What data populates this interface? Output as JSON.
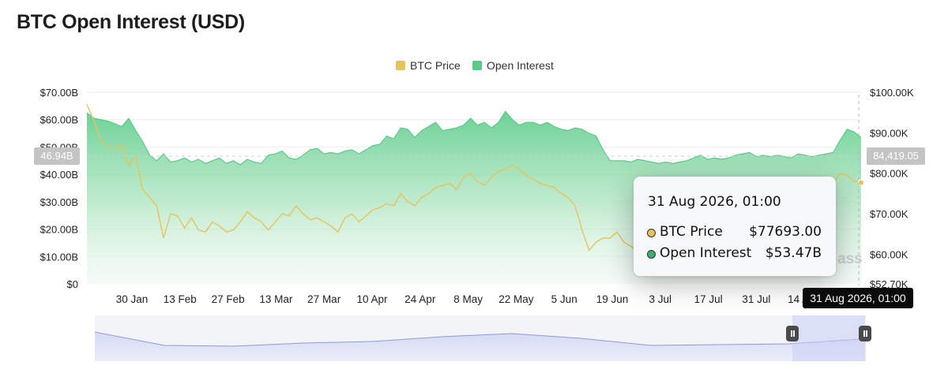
{
  "title": "BTC Open Interest (USD)",
  "legend": {
    "items": [
      {
        "label": "BTC Price",
        "color": "#e8c25a"
      },
      {
        "label": "Open Interest",
        "color": "#5cc98a"
      }
    ]
  },
  "tooltip": {
    "date": "31 Aug 2026, 01:00",
    "rows": [
      {
        "label": "BTC Price",
        "value": "$77693.00",
        "color": "#e8c25a"
      },
      {
        "label": "Open Interest",
        "value": "$53.47B",
        "color": "#3fae74"
      }
    ]
  },
  "crosshair": {
    "left_value": "46.94B",
    "right_value": "84,419.05",
    "date": "31 Aug 2026, 01:00"
  },
  "watermark": "ass",
  "chart_data": {
    "type": "area",
    "title": "BTC Open Interest (USD)",
    "categories": [
      "30 Jan",
      "13 Feb",
      "27 Feb",
      "13 Mar",
      "27 Mar",
      "10 Apr",
      "24 Apr",
      "8 May",
      "22 May",
      "5 Jun",
      "19 Jun",
      "3 Jul",
      "17 Jul",
      "31 Jul",
      "14 Aug",
      "31 Aug"
    ],
    "left_axis": {
      "ticks": [
        "$0",
        "$10.00B",
        "$20.00B",
        "$30.00B",
        "$40.00B",
        "$50.00B",
        "$60.00B",
        "$70.00B"
      ],
      "range": [
        0,
        70
      ]
    },
    "right_axis": {
      "ticks": [
        "$52.70K",
        "$60.00K",
        "$70.00K",
        "$80.00K",
        "$90.00K",
        "$100.00K"
      ],
      "range": [
        52.7,
        100
      ]
    },
    "x_range": [
      0,
      222
    ],
    "series": [
      {
        "name": "Open Interest",
        "unit": "USD billions",
        "axis": "left",
        "color": "#5cc98a",
        "x": [
          0,
          2,
          4,
          6,
          8,
          10,
          12,
          14,
          16,
          18,
          20,
          22,
          24,
          26,
          28,
          30,
          32,
          34,
          36,
          38,
          40,
          42,
          44,
          46,
          48,
          50,
          52,
          54,
          56,
          58,
          60,
          62,
          64,
          66,
          68,
          70,
          72,
          74,
          76,
          78,
          80,
          82,
          84,
          86,
          88,
          90,
          92,
          94,
          96,
          98,
          100,
          102,
          104,
          106,
          108,
          110,
          112,
          114,
          116,
          118,
          120,
          122,
          124,
          126,
          128,
          130,
          132,
          134,
          136,
          138,
          140,
          142,
          144,
          146,
          148,
          150,
          152,
          154,
          156,
          158,
          160,
          162,
          164,
          166,
          168,
          170,
          172,
          174,
          176,
          178,
          180,
          182,
          184,
          186,
          188,
          190,
          192,
          194,
          196,
          198,
          200,
          202,
          204,
          206,
          208,
          210,
          212,
          214,
          216,
          218,
          220,
          222
        ],
        "values": [
          62.5,
          60.5,
          60,
          59.5,
          58.5,
          57.5,
          60.5,
          56,
          52,
          47,
          45,
          47.5,
          44.5,
          45,
          46,
          44.5,
          45.5,
          44,
          45,
          46,
          44,
          45,
          43.5,
          45.5,
          44.5,
          44,
          47,
          47.5,
          48.5,
          46,
          45.5,
          47,
          49,
          49.5,
          47.5,
          48,
          47.5,
          48.5,
          49,
          47.5,
          49,
          50.5,
          51,
          54,
          53,
          57,
          56.5,
          53.5,
          56,
          57.5,
          59,
          56,
          56.5,
          57,
          58,
          60.5,
          58,
          59,
          57,
          59,
          63,
          60,
          58,
          59,
          59,
          58,
          59,
          57.5,
          56.5,
          56,
          57,
          56.5,
          55,
          54,
          49,
          45,
          45,
          45,
          44.5,
          45.5,
          45,
          44.5,
          44,
          44.5,
          44,
          44.5,
          45,
          46,
          47,
          45.5,
          46,
          45.5,
          46,
          47,
          47.5,
          48,
          46.5,
          47,
          46.5,
          47,
          46.5,
          46,
          47.5,
          47,
          46.5,
          47,
          47.5,
          48,
          52.5,
          56.5,
          55.5,
          53.5
        ]
      },
      {
        "name": "BTC Price",
        "unit": "USD thousands",
        "axis": "right",
        "color": "#e8c25a",
        "x": [
          0,
          2,
          4,
          6,
          8,
          10,
          12,
          14,
          16,
          18,
          20,
          22,
          24,
          26,
          28,
          30,
          32,
          34,
          36,
          38,
          40,
          42,
          44,
          46,
          48,
          50,
          52,
          54,
          56,
          58,
          60,
          62,
          64,
          66,
          68,
          70,
          72,
          74,
          76,
          78,
          80,
          82,
          84,
          86,
          88,
          90,
          92,
          94,
          96,
          98,
          100,
          102,
          104,
          106,
          108,
          110,
          112,
          114,
          116,
          118,
          120,
          122,
          124,
          126,
          128,
          130,
          132,
          134,
          136,
          138,
          140,
          142,
          144,
          146,
          148,
          150,
          152,
          154,
          156,
          158,
          160,
          162,
          164,
          166,
          168,
          170,
          172,
          174,
          176,
          178,
          180,
          182,
          184,
          186,
          188,
          190,
          192,
          194,
          196,
          198,
          200,
          202,
          204,
          206,
          208,
          210,
          212,
          214,
          216,
          218,
          220,
          222
        ],
        "values": [
          97,
          93,
          88,
          86.5,
          86,
          87,
          82,
          84,
          76,
          74,
          72,
          64,
          70,
          69.5,
          66.5,
          69,
          66,
          65.5,
          68,
          67,
          65.5,
          66,
          68,
          70.5,
          69,
          68,
          66,
          68,
          70,
          69.5,
          72,
          70,
          68.5,
          69,
          68,
          67,
          65.5,
          69,
          70,
          68,
          69.5,
          71,
          71.5,
          72.5,
          72,
          75,
          73,
          72,
          74,
          75,
          76.5,
          77,
          77.5,
          76,
          79,
          80,
          78,
          77,
          79,
          80.5,
          81,
          82,
          81,
          79.5,
          78.5,
          77.5,
          77,
          76.5,
          75,
          74,
          72,
          66,
          61,
          63,
          64,
          64,
          65.5,
          63,
          62,
          60.5,
          59.5,
          58.5,
          58,
          59,
          57,
          58.5,
          59,
          60,
          61,
          60.5,
          62,
          63.5,
          61,
          62,
          63,
          64,
          65,
          66,
          67,
          66.5,
          68,
          70,
          71,
          72,
          73.5,
          75,
          76,
          77.5,
          80,
          79.5,
          78,
          77.7
        ]
      }
    ],
    "navigator": {
      "x": [
        0,
        20,
        40,
        60,
        80,
        100,
        120,
        140,
        160,
        180,
        200,
        222
      ],
      "values": [
        62,
        45,
        44,
        48,
        50,
        56,
        60,
        54,
        45,
        46,
        47,
        53.5
      ]
    },
    "grid": true,
    "legend_position": "top-center"
  }
}
